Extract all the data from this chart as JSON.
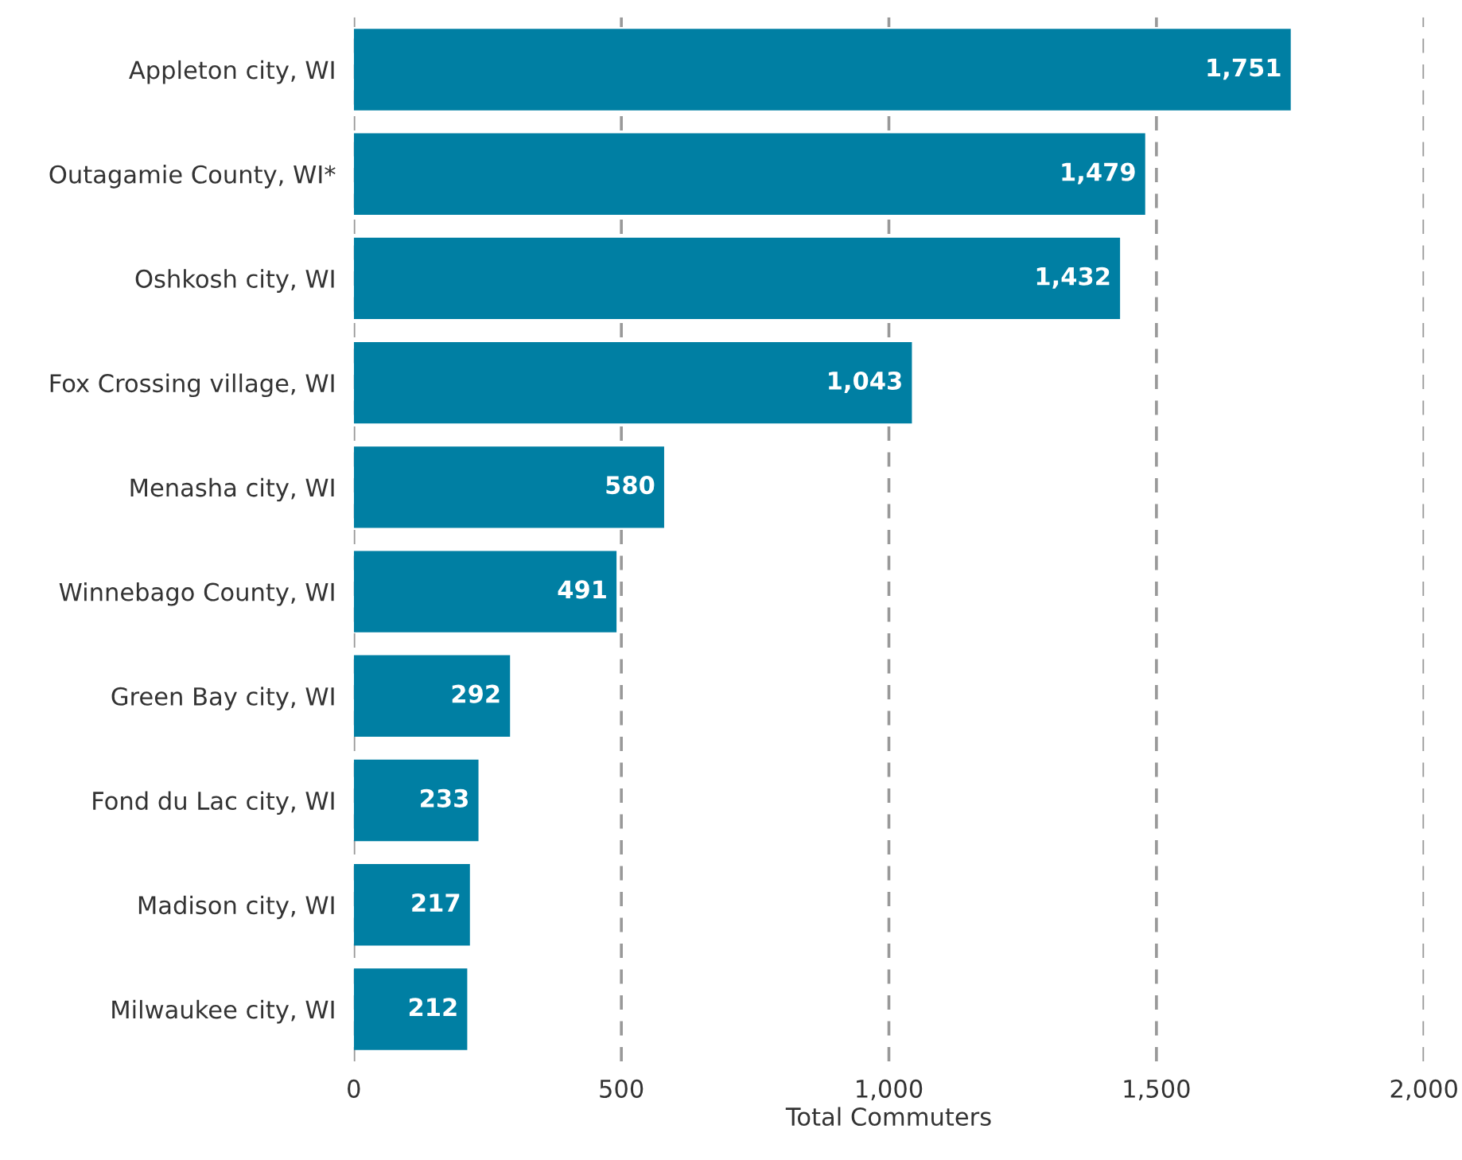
{
  "chart_data": {
    "type": "bar",
    "orientation": "horizontal",
    "xlabel": "Total Commuters",
    "categories": [
      "Appleton city, WI",
      "Outagamie County, WI*",
      "Oshkosh city, WI",
      "Fox Crossing village, WI",
      "Menasha city, WI",
      "Winnebago County, WI",
      "Green Bay city, WI",
      "Fond du Lac city, WI",
      "Madison city, WI",
      "Milwaukee city, WI"
    ],
    "values": [
      1751,
      1479,
      1432,
      1043,
      580,
      491,
      292,
      233,
      217,
      212
    ],
    "value_labels": [
      "1,751",
      "1,479",
      "1,432",
      "1,043",
      "580",
      "491",
      "292",
      "233",
      "217",
      "212"
    ],
    "color": "#007fa3",
    "xlim": [
      0,
      2000
    ],
    "xticks": [
      0,
      500,
      {
        "value": 1000,
        "label": "1,000"
      },
      {
        "value": 1500,
        "label": "1,500"
      },
      {
        "value": 2000,
        "label": "2,000"
      }
    ],
    "grid": "x",
    "legend": false
  }
}
